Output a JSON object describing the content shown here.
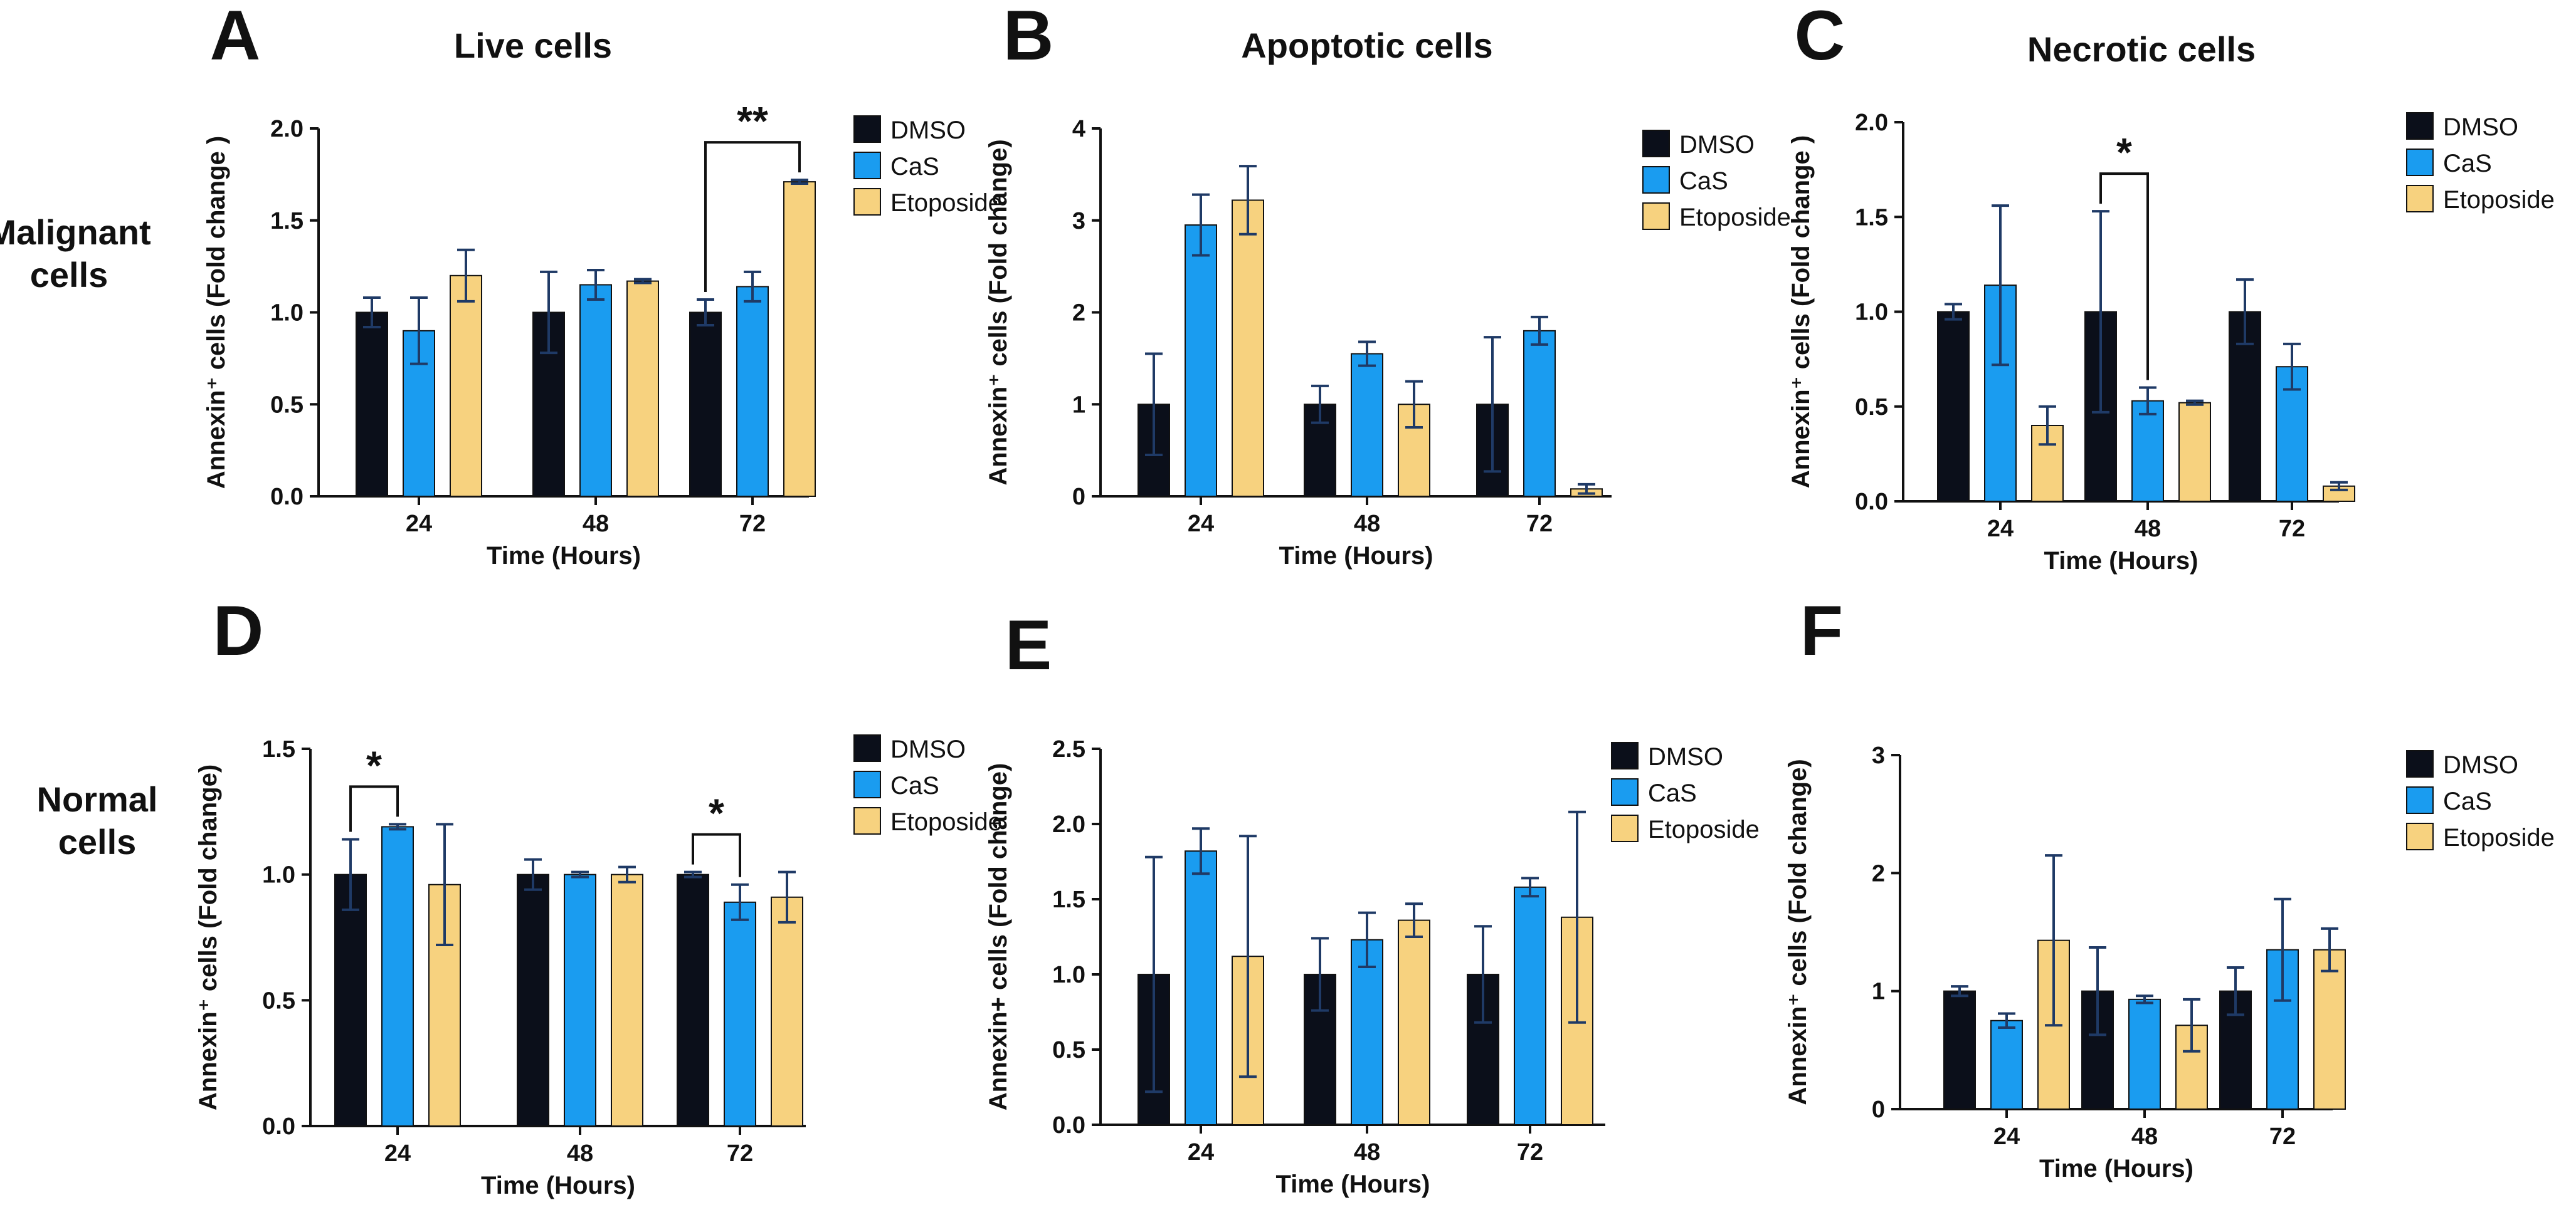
{
  "row_labels": {
    "malignant": [
      "Malignant",
      "cells"
    ],
    "normal": [
      "Normal",
      "cells"
    ]
  },
  "colors": {
    "DMSO": "#0b0f1a",
    "CaS": "#1a9cf0",
    "Etoposide": "#f7d27f",
    "error_bar": "#1f3a66",
    "axis": "#111111"
  },
  "chart_data": [
    {
      "panel": "A",
      "type": "bar",
      "title": "Live cells",
      "categories": [
        "24",
        "48",
        "72"
      ],
      "xlabel": "Time (Hours)",
      "ylabel": "Annexin⁺ cells (Fold change )",
      "ylim": [
        0,
        2
      ],
      "yticks": [
        "0.0",
        "0.5",
        "1.0",
        "1.5",
        "2.0"
      ],
      "series": [
        {
          "name": "DMSO",
          "values": [
            1.0,
            1.0,
            1.0
          ],
          "errors": [
            0.08,
            0.22,
            0.07
          ]
        },
        {
          "name": "CaS",
          "values": [
            0.9,
            1.15,
            1.14
          ],
          "errors": [
            0.18,
            0.08,
            0.08
          ]
        },
        {
          "name": "Etoposide",
          "values": [
            1.2,
            1.17,
            1.71
          ],
          "errors": [
            0.14,
            0.01,
            0.01
          ]
        }
      ],
      "significance": [
        {
          "label": "**",
          "category": "72",
          "from": "DMSO",
          "to": "Etoposide"
        }
      ]
    },
    {
      "panel": "B",
      "type": "bar",
      "title": "Apoptotic cells",
      "categories": [
        "24",
        "48",
        "72"
      ],
      "xlabel": "Time (Hours)",
      "ylabel": "Annexin⁺ cells (Fold change)",
      "ylim": [
        0,
        4
      ],
      "yticks": [
        "0",
        "1",
        "2",
        "3",
        "4"
      ],
      "series": [
        {
          "name": "DMSO",
          "values": [
            1.0,
            1.0,
            1.0
          ],
          "errors": [
            0.55,
            0.2,
            0.73
          ]
        },
        {
          "name": "CaS",
          "values": [
            2.95,
            1.55,
            1.8
          ],
          "errors": [
            0.33,
            0.13,
            0.15
          ]
        },
        {
          "name": "Etoposide",
          "values": [
            3.22,
            1.0,
            0.08
          ],
          "errors": [
            0.37,
            0.25,
            0.05
          ]
        }
      ],
      "significance": []
    },
    {
      "panel": "C",
      "type": "bar",
      "title": "Necrotic cells",
      "categories": [
        "24",
        "48",
        "72"
      ],
      "xlabel": "Time (Hours)",
      "ylabel": "Annexin⁺ cells (Fold change )",
      "ylim": [
        0,
        2
      ],
      "yticks": [
        "0.0",
        "0.5",
        "1.0",
        "1.5",
        "2.0"
      ],
      "series": [
        {
          "name": "DMSO",
          "values": [
            1.0,
            1.0,
            1.0
          ],
          "errors": [
            0.04,
            0.53,
            0.17
          ]
        },
        {
          "name": "CaS",
          "values": [
            1.14,
            0.53,
            0.71
          ],
          "errors": [
            0.42,
            0.07,
            0.12
          ]
        },
        {
          "name": "Etoposide",
          "values": [
            0.4,
            0.52,
            0.08
          ],
          "errors": [
            0.1,
            0.01,
            0.02
          ]
        }
      ],
      "significance": [
        {
          "label": "*",
          "category": "48",
          "from": "DMSO",
          "to": "CaS"
        }
      ]
    },
    {
      "panel": "D",
      "type": "bar",
      "title": "",
      "categories": [
        "24",
        "48",
        "72"
      ],
      "xlabel": "Time (Hours)",
      "ylabel": "Annexin⁺ cells  (Fold change)",
      "ylim": [
        0,
        1.5
      ],
      "yticks": [
        "0.0",
        "0.5",
        "1.0",
        "1.5"
      ],
      "series": [
        {
          "name": "DMSO",
          "values": [
            1.0,
            1.0,
            1.0
          ],
          "errors": [
            0.14,
            0.06,
            0.01
          ]
        },
        {
          "name": "CaS",
          "values": [
            1.19,
            1.0,
            0.89
          ],
          "errors": [
            0.01,
            0.01,
            0.07
          ]
        },
        {
          "name": "Etoposide",
          "values": [
            0.96,
            1.0,
            0.91
          ],
          "errors": [
            0.24,
            0.03,
            0.1
          ]
        }
      ],
      "significance": [
        {
          "label": "*",
          "category": "24",
          "from": "DMSO",
          "to": "CaS"
        },
        {
          "label": "*",
          "category": "72",
          "from": "DMSO",
          "to": "CaS"
        }
      ]
    },
    {
      "panel": "E",
      "type": "bar",
      "title": "",
      "categories": [
        "24",
        "48",
        "72"
      ],
      "xlabel": "Time (Hours)",
      "ylabel": "Annexin+ cells (Fold change)",
      "ylim": [
        0,
        2.5
      ],
      "yticks": [
        "0.0",
        "0.5",
        "1.0",
        "1.5",
        "2.0",
        "2.5"
      ],
      "series": [
        {
          "name": "DMSO",
          "values": [
            1.0,
            1.0,
            1.0
          ],
          "errors": [
            0.78,
            0.24,
            0.32
          ]
        },
        {
          "name": "CaS",
          "values": [
            1.82,
            1.23,
            1.58
          ],
          "errors": [
            0.15,
            0.18,
            0.06
          ]
        },
        {
          "name": "Etoposide",
          "values": [
            1.12,
            1.36,
            1.38
          ],
          "errors": [
            0.8,
            0.11,
            0.7
          ]
        }
      ],
      "significance": []
    },
    {
      "panel": "F",
      "type": "bar",
      "title": "",
      "categories": [
        "24",
        "48",
        "72"
      ],
      "xlabel": "Time (Hours)",
      "ylabel": "Annexin⁺ cells (Fold change)",
      "ylim": [
        0,
        3
      ],
      "yticks": [
        "0",
        "1",
        "2",
        "3"
      ],
      "series": [
        {
          "name": "DMSO",
          "values": [
            1.0,
            1.0,
            1.0
          ],
          "errors": [
            0.04,
            0.37,
            0.2
          ]
        },
        {
          "name": "CaS",
          "values": [
            0.75,
            0.93,
            1.35
          ],
          "errors": [
            0.06,
            0.03,
            0.43
          ]
        },
        {
          "name": "Etoposide",
          "values": [
            1.43,
            0.71,
            1.35
          ],
          "errors": [
            0.72,
            0.22,
            0.18
          ]
        }
      ],
      "significance": []
    }
  ]
}
